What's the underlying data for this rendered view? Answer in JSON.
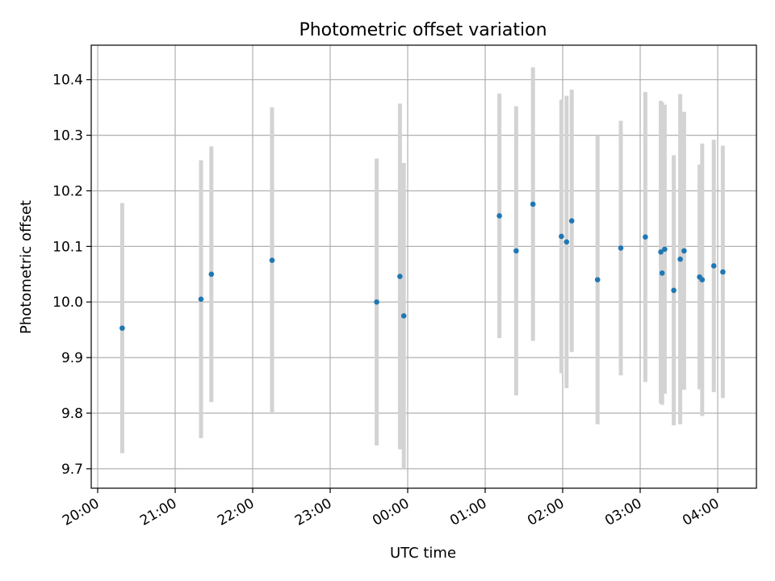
{
  "chart_data": {
    "type": "scatter",
    "title": "Photometric offset variation",
    "xlabel": "UTC time",
    "ylabel": "Photometric offset",
    "x_axis_kind": "time (HH:MM, UTC)",
    "xlim": [
      "19:55",
      "04:30"
    ],
    "ylim": [
      9.665,
      10.462
    ],
    "grid": true,
    "legend": "none",
    "x_ticks": [
      "20:00",
      "21:00",
      "22:00",
      "23:00",
      "00:00",
      "01:00",
      "02:00",
      "03:00",
      "04:00"
    ],
    "y_ticks": [
      "9.7",
      "9.8",
      "9.9",
      "10.0",
      "10.1",
      "10.2",
      "10.3",
      "10.4"
    ],
    "colors": {
      "points": "#1f77b4",
      "error_bars": "#d3d3d3",
      "grid": "#b0b0b0"
    },
    "points": [
      {
        "x": "20:19",
        "y": 9.953,
        "err_low": 9.728,
        "err_high": 10.178
      },
      {
        "x": "21:20",
        "y": 10.005,
        "err_low": 9.755,
        "err_high": 10.255
      },
      {
        "x": "21:28",
        "y": 10.05,
        "err_low": 9.82,
        "err_high": 10.28
      },
      {
        "x": "22:15",
        "y": 10.075,
        "err_low": 9.8,
        "err_high": 10.35
      },
      {
        "x": "23:36",
        "y": 10.0,
        "err_low": 9.742,
        "err_high": 10.258
      },
      {
        "x": "23:54",
        "y": 10.046,
        "err_low": 9.735,
        "err_high": 10.357
      },
      {
        "x": "23:57",
        "y": 9.975,
        "err_low": 9.7,
        "err_high": 10.25
      },
      {
        "x": "01:11",
        "y": 10.155,
        "err_low": 9.935,
        "err_high": 10.375
      },
      {
        "x": "01:24",
        "y": 10.092,
        "err_low": 9.832,
        "err_high": 10.352
      },
      {
        "x": "01:37",
        "y": 10.176,
        "err_low": 9.93,
        "err_high": 10.422
      },
      {
        "x": "01:59",
        "y": 10.118,
        "err_low": 9.872,
        "err_high": 10.364
      },
      {
        "x": "02:03",
        "y": 10.108,
        "err_low": 9.845,
        "err_high": 10.371
      },
      {
        "x": "02:07",
        "y": 10.146,
        "err_low": 9.91,
        "err_high": 10.382
      },
      {
        "x": "02:27",
        "y": 10.04,
        "err_low": 9.78,
        "err_high": 10.3
      },
      {
        "x": "02:45",
        "y": 10.097,
        "err_low": 9.868,
        "err_high": 10.326
      },
      {
        "x": "03:04",
        "y": 10.117,
        "err_low": 9.856,
        "err_high": 10.378
      },
      {
        "x": "03:16",
        "y": 10.09,
        "err_low": 9.818,
        "err_high": 10.362
      },
      {
        "x": "03:17",
        "y": 10.052,
        "err_low": 9.815,
        "err_high": 10.359
      },
      {
        "x": "03:19",
        "y": 10.095,
        "err_low": 9.835,
        "err_high": 10.355
      },
      {
        "x": "03:26",
        "y": 10.021,
        "err_low": 9.778,
        "err_high": 10.264
      },
      {
        "x": "03:31",
        "y": 10.077,
        "err_low": 9.78,
        "err_high": 10.374
      },
      {
        "x": "03:34",
        "y": 10.092,
        "err_low": 9.842,
        "err_high": 10.342
      },
      {
        "x": "03:46",
        "y": 10.045,
        "err_low": 9.843,
        "err_high": 10.247
      },
      {
        "x": "03:48",
        "y": 10.04,
        "err_low": 9.795,
        "err_high": 10.285
      },
      {
        "x": "03:57",
        "y": 10.065,
        "err_low": 9.838,
        "err_high": 10.292
      },
      {
        "x": "04:04",
        "y": 10.054,
        "err_low": 9.827,
        "err_high": 10.281
      }
    ]
  }
}
